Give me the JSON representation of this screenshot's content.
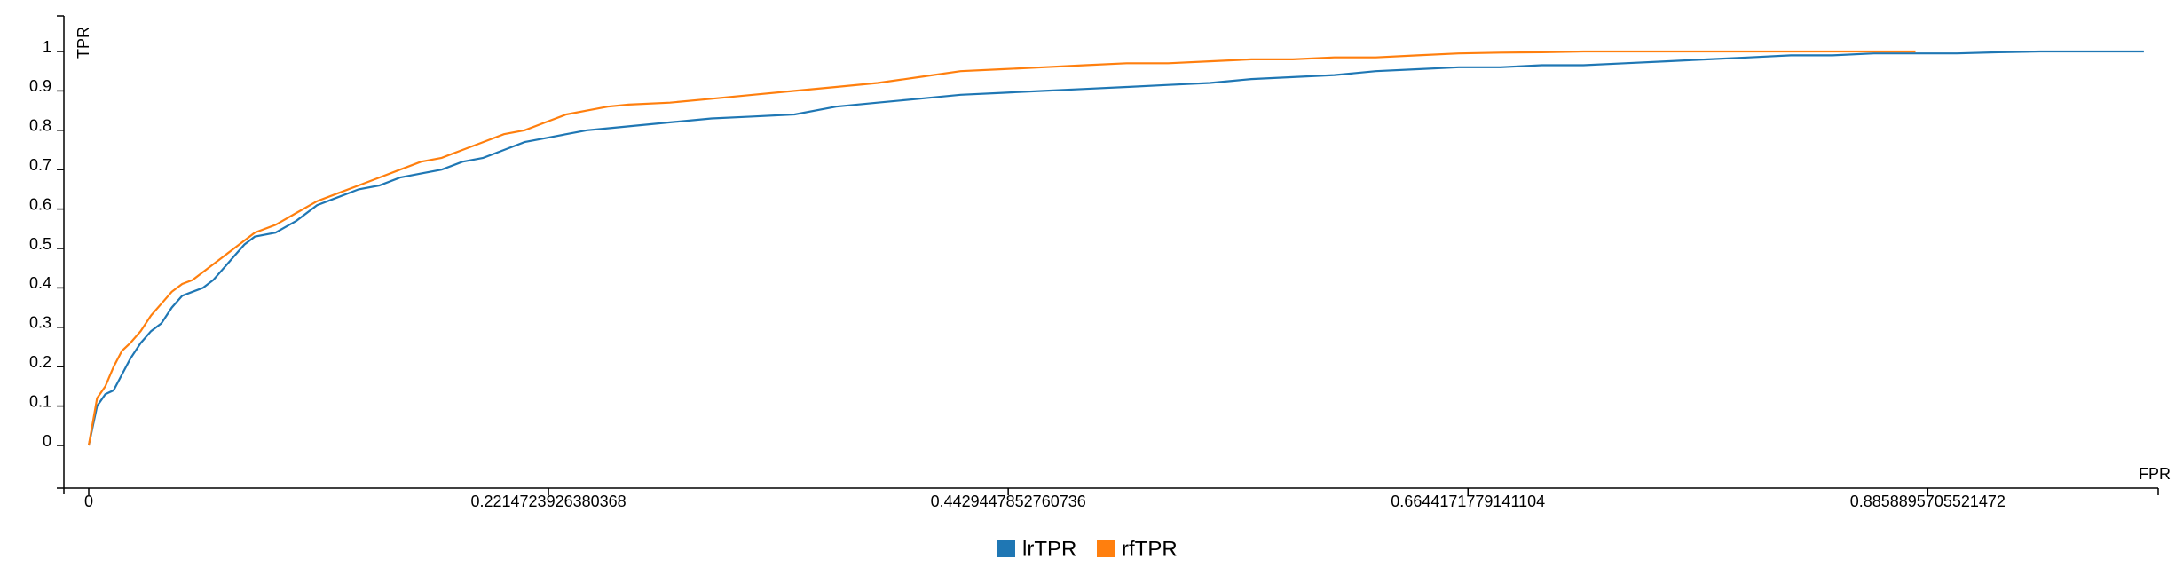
{
  "chart_data": {
    "type": "line",
    "xlabel": "FPR",
    "ylabel": "TPR",
    "xlim": [
      0,
      0.9969
    ],
    "ylim": [
      -0.1,
      1.1
    ],
    "x_ticks": [
      {
        "value": 0,
        "label": "0"
      },
      {
        "value": 0.2214723926380368,
        "label": "0.2214723926380368"
      },
      {
        "value": 0.4429447852760736,
        "label": "0.4429447852760736"
      },
      {
        "value": 0.6644171779141104,
        "label": "0.6644171779141104"
      },
      {
        "value": 0.8858895705521472,
        "label": "0.8858895705521472"
      }
    ],
    "y_ticks": [
      {
        "value": 0,
        "label": "0"
      },
      {
        "value": 0.1,
        "label": "0.1"
      },
      {
        "value": 0.2,
        "label": "0.2"
      },
      {
        "value": 0.3,
        "label": "0.3"
      },
      {
        "value": 0.4,
        "label": "0.4"
      },
      {
        "value": 0.5,
        "label": "0.5"
      },
      {
        "value": 0.6,
        "label": "0.6"
      },
      {
        "value": 0.7,
        "label": "0.7"
      },
      {
        "value": 0.8,
        "label": "0.8"
      },
      {
        "value": 0.9,
        "label": "0.9"
      },
      {
        "value": 1,
        "label": "1"
      }
    ],
    "legend_position": "bottom-center",
    "series": [
      {
        "name": "lrTPR",
        "color": "#1f77b4",
        "points": [
          [
            0.0,
            0.0
          ],
          [
            0.002,
            0.05
          ],
          [
            0.004,
            0.1
          ],
          [
            0.008,
            0.13
          ],
          [
            0.012,
            0.14
          ],
          [
            0.016,
            0.18
          ],
          [
            0.02,
            0.22
          ],
          [
            0.025,
            0.26
          ],
          [
            0.03,
            0.29
          ],
          [
            0.035,
            0.31
          ],
          [
            0.04,
            0.35
          ],
          [
            0.045,
            0.38
          ],
          [
            0.05,
            0.39
          ],
          [
            0.055,
            0.4
          ],
          [
            0.06,
            0.42
          ],
          [
            0.065,
            0.45
          ],
          [
            0.07,
            0.48
          ],
          [
            0.075,
            0.51
          ],
          [
            0.08,
            0.53
          ],
          [
            0.09,
            0.54
          ],
          [
            0.1,
            0.57
          ],
          [
            0.11,
            0.61
          ],
          [
            0.12,
            0.63
          ],
          [
            0.13,
            0.65
          ],
          [
            0.14,
            0.66
          ],
          [
            0.15,
            0.68
          ],
          [
            0.16,
            0.69
          ],
          [
            0.17,
            0.7
          ],
          [
            0.18,
            0.72
          ],
          [
            0.19,
            0.73
          ],
          [
            0.2,
            0.75
          ],
          [
            0.21,
            0.77
          ],
          [
            0.22,
            0.78
          ],
          [
            0.23,
            0.79
          ],
          [
            0.24,
            0.8
          ],
          [
            0.25,
            0.805
          ],
          [
            0.26,
            0.81
          ],
          [
            0.28,
            0.82
          ],
          [
            0.3,
            0.83
          ],
          [
            0.32,
            0.835
          ],
          [
            0.34,
            0.84
          ],
          [
            0.36,
            0.86
          ],
          [
            0.38,
            0.87
          ],
          [
            0.4,
            0.88
          ],
          [
            0.42,
            0.89
          ],
          [
            0.44,
            0.895
          ],
          [
            0.46,
            0.9
          ],
          [
            0.48,
            0.905
          ],
          [
            0.5,
            0.91
          ],
          [
            0.52,
            0.915
          ],
          [
            0.54,
            0.92
          ],
          [
            0.56,
            0.93
          ],
          [
            0.58,
            0.935
          ],
          [
            0.6,
            0.94
          ],
          [
            0.62,
            0.95
          ],
          [
            0.64,
            0.955
          ],
          [
            0.66,
            0.96
          ],
          [
            0.68,
            0.96
          ],
          [
            0.7,
            0.965
          ],
          [
            0.72,
            0.965
          ],
          [
            0.74,
            0.97
          ],
          [
            0.76,
            0.975
          ],
          [
            0.78,
            0.98
          ],
          [
            0.8,
            0.985
          ],
          [
            0.82,
            0.99
          ],
          [
            0.84,
            0.99
          ],
          [
            0.86,
            0.995
          ],
          [
            0.88,
            0.995
          ],
          [
            0.9,
            0.995
          ],
          [
            0.92,
            0.998
          ],
          [
            0.94,
            1.0
          ],
          [
            0.96,
            1.0
          ],
          [
            0.99,
            1.0
          ]
        ]
      },
      {
        "name": "rfTPR",
        "color": "#ff7f0e",
        "points": [
          [
            0.0,
            0.0
          ],
          [
            0.002,
            0.06
          ],
          [
            0.004,
            0.12
          ],
          [
            0.008,
            0.15
          ],
          [
            0.012,
            0.2
          ],
          [
            0.016,
            0.24
          ],
          [
            0.02,
            0.26
          ],
          [
            0.025,
            0.29
          ],
          [
            0.03,
            0.33
          ],
          [
            0.035,
            0.36
          ],
          [
            0.04,
            0.39
          ],
          [
            0.045,
            0.41
          ],
          [
            0.05,
            0.42
          ],
          [
            0.055,
            0.44
          ],
          [
            0.06,
            0.46
          ],
          [
            0.065,
            0.48
          ],
          [
            0.07,
            0.5
          ],
          [
            0.075,
            0.52
          ],
          [
            0.08,
            0.54
          ],
          [
            0.09,
            0.56
          ],
          [
            0.1,
            0.59
          ],
          [
            0.11,
            0.62
          ],
          [
            0.12,
            0.64
          ],
          [
            0.13,
            0.66
          ],
          [
            0.14,
            0.68
          ],
          [
            0.15,
            0.7
          ],
          [
            0.16,
            0.72
          ],
          [
            0.17,
            0.73
          ],
          [
            0.18,
            0.75
          ],
          [
            0.19,
            0.77
          ],
          [
            0.2,
            0.79
          ],
          [
            0.21,
            0.8
          ],
          [
            0.22,
            0.82
          ],
          [
            0.23,
            0.84
          ],
          [
            0.24,
            0.85
          ],
          [
            0.25,
            0.86
          ],
          [
            0.26,
            0.865
          ],
          [
            0.28,
            0.87
          ],
          [
            0.3,
            0.88
          ],
          [
            0.32,
            0.89
          ],
          [
            0.34,
            0.9
          ],
          [
            0.36,
            0.91
          ],
          [
            0.38,
            0.92
          ],
          [
            0.4,
            0.935
          ],
          [
            0.42,
            0.95
          ],
          [
            0.44,
            0.955
          ],
          [
            0.46,
            0.96
          ],
          [
            0.48,
            0.965
          ],
          [
            0.5,
            0.97
          ],
          [
            0.52,
            0.97
          ],
          [
            0.54,
            0.975
          ],
          [
            0.56,
            0.98
          ],
          [
            0.58,
            0.98
          ],
          [
            0.6,
            0.985
          ],
          [
            0.62,
            0.985
          ],
          [
            0.64,
            0.99
          ],
          [
            0.66,
            0.995
          ],
          [
            0.68,
            0.997
          ],
          [
            0.7,
            0.998
          ],
          [
            0.72,
            1.0
          ],
          [
            0.75,
            1.0
          ],
          [
            0.8,
            1.0
          ],
          [
            0.85,
            1.0
          ],
          [
            0.88,
            1.0
          ]
        ]
      }
    ]
  }
}
